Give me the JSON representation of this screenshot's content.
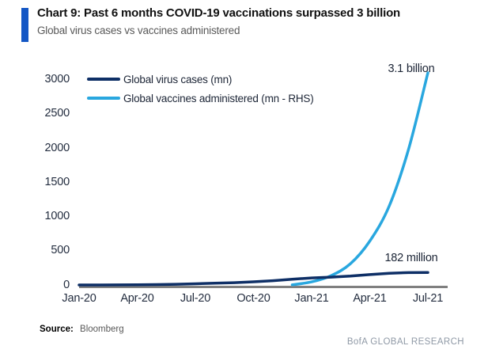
{
  "header": {
    "title": "Chart 9: Past 6 months COVID-19 vaccinations surpassed 3 billion",
    "subtitle": "Global virus cases vs vaccines administered"
  },
  "legend": [
    {
      "label": "Global virus cases (mn)",
      "color": "#0e2f66"
    },
    {
      "label": "Global vaccines administered (mn - RHS)",
      "color": "#29a7df"
    }
  ],
  "annotations": {
    "vaccines_end": "3.1 billion",
    "cases_end": "182 million"
  },
  "footer": {
    "source_label": "Source:",
    "source_value": "Bloomberg",
    "brand": "BofA GLOBAL RESEARCH"
  },
  "colors": {
    "accent": "#1457c5",
    "virus_cases_line": "#0e2f66",
    "vaccines_line": "#29a7df",
    "axis_line": "#7f7f7f",
    "tick_text": "#232d3f"
  },
  "chart_data": {
    "type": "line",
    "title": "Global virus cases vs vaccines administered",
    "x": [
      "Jan-20",
      "Feb-20",
      "Mar-20",
      "Apr-20",
      "May-20",
      "Jun-20",
      "Jul-20",
      "Aug-20",
      "Sep-20",
      "Oct-20",
      "Nov-20",
      "Dec-20",
      "Jan-21",
      "Feb-21",
      "Mar-21",
      "Apr-21",
      "May-21",
      "Jun-21",
      "Jul-21"
    ],
    "series": [
      {
        "name": "Global virus cases (mn)",
        "axis": "left",
        "style": "polyline",
        "values": [
          0.1,
          0.1,
          0.9,
          3,
          6,
          10,
          17,
          26,
          34,
          46,
          63,
          84,
          103,
          114,
          129,
          151,
          171,
          180,
          182
        ]
      },
      {
        "name": "Global vaccines administered (mn - RHS)",
        "axis": "right",
        "style": "smooth",
        "values": [
          null,
          null,
          null,
          null,
          null,
          null,
          null,
          null,
          null,
          null,
          null,
          2,
          45,
          135,
          310,
          640,
          1150,
          1980,
          3100
        ]
      }
    ],
    "xtick_labels": [
      "Jan-20",
      "Apr-20",
      "Jul-20",
      "Oct-20",
      "Jan-21",
      "Apr-21",
      "Jul-21"
    ],
    "xtick_indices": [
      0,
      3,
      6,
      9,
      12,
      15,
      18
    ],
    "ytick_labels": [
      "3000",
      "2500",
      "2000",
      "1500",
      "1000",
      "500",
      "0"
    ],
    "ytick_values": [
      3000,
      2500,
      2000,
      1500,
      1000,
      500,
      0
    ],
    "ylim": [
      0,
      3000
    ],
    "grid": false,
    "legend_position": "top-left",
    "endpoint_values": {
      "virus_cases_mn": 182,
      "vaccines_mn": 3100
    }
  }
}
